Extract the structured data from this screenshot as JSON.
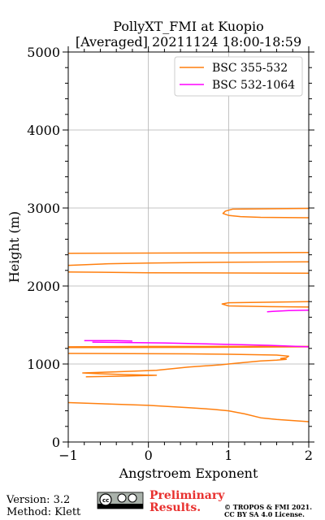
{
  "chart_data": {
    "type": "line",
    "title": [
      "PollyXT_FMI at Kuopio",
      "[Averaged] 20211124 18:00-18:59"
    ],
    "xlabel": "Angstroem Exponent",
    "ylabel": "Height (m)",
    "xlim": [
      -1,
      2
    ],
    "ylim": [
      0,
      5000
    ],
    "xticks": [
      -1,
      0,
      1,
      2
    ],
    "yticks": [
      0,
      1000,
      2000,
      3000,
      4000,
      5000
    ],
    "grid": true,
    "legend_position": "top-right",
    "series": [
      {
        "name": "BSC 355-532",
        "color": "#ff7f0e",
        "x": [
          2.0,
          1.4,
          1.15,
          1.0,
          0.93,
          0.96,
          1.05,
          2.0,
          null,
          2.0,
          1.0,
          -1.0,
          null,
          -1.0,
          -0.5,
          0.0,
          0.5,
          1.0,
          2.0,
          null,
          2.0,
          0.0,
          -1.0,
          null,
          -1.0,
          0.0,
          1.0,
          2.0,
          null,
          2.0,
          1.5,
          1.0,
          0.92,
          1.0,
          2.0,
          null,
          2.0,
          1.0,
          -1.0,
          null,
          -1.0,
          0.5,
          1.0,
          1.3,
          1.6,
          1.75,
          1.72,
          1.65,
          1.72,
          1.6,
          1.4,
          1.1,
          0.9,
          0.5,
          0.1,
          -0.4,
          -0.82,
          -0.6,
          -0.3,
          0.1,
          -0.3,
          -0.78,
          null,
          -1.0,
          0.0,
          0.5,
          0.8,
          1.0,
          1.2,
          1.4,
          1.6,
          1.8,
          2.0
        ],
        "y": [
          2875,
          2880,
          2890,
          2905,
          2930,
          2960,
          2985,
          2995,
          null,
          2430,
          2425,
          2420,
          null,
          2265,
          2285,
          2295,
          2300,
          2305,
          2310,
          null,
          2165,
          2170,
          2180,
          null,
          1220,
          1225,
          1225,
          1225,
          null,
          1730,
          1735,
          1745,
          1770,
          1785,
          1800,
          null,
          1220,
          1215,
          1210,
          null,
          1135,
          1130,
          1125,
          1120,
          1115,
          1100,
          1080,
          1070,
          1060,
          1050,
          1040,
          1010,
          990,
          960,
          920,
          900,
          885,
          875,
          865,
          855,
          845,
          835,
          null,
          505,
          470,
          440,
          420,
          400,
          360,
          310,
          290,
          275,
          260
        ]
      },
      {
        "name": "BSC 532-1064",
        "color": "#ff00ff",
        "x": [
          -0.8,
          -0.4,
          -0.2,
          null,
          -0.7,
          0.2,
          1.5,
          2.0,
          null,
          1.48,
          1.55,
          1.75,
          2.0
        ],
        "y": [
          1300,
          1300,
          1295,
          null,
          1280,
          1270,
          1240,
          1220,
          null,
          1670,
          1675,
          1685,
          1690
        ]
      }
    ]
  },
  "footer": {
    "version": "Version: 3.2",
    "method": "Method: Klett",
    "prelim_line1": "Preliminary",
    "prelim_line2": "Results.",
    "copyright": "© TROPOS & FMI 2021.",
    "license": "CC BY SA 4.0 License.",
    "license_badge": "cc-by-sa-icon"
  }
}
